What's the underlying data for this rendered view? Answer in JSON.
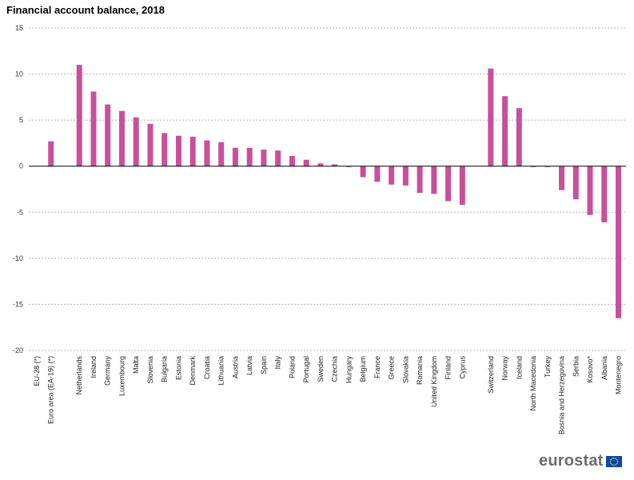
{
  "chart_data": {
    "type": "bar",
    "title": "Financial account balance, 2018",
    "xlabel": "",
    "ylabel": "",
    "ylim": [
      -20,
      15
    ],
    "yticks": [
      15,
      10,
      5,
      0,
      -5,
      -10,
      -15,
      -20
    ],
    "grid": true,
    "legend": "none",
    "bar_color": "#c8509b",
    "categories": [
      "EU-28 (*)",
      "Euro area (EA-19) (*)",
      "",
      "Netherlands",
      "Ireland",
      "Germany",
      "Luxembourg",
      "Malta",
      "Slovenia",
      "Bulgaria",
      "Estonia",
      "Denmark",
      "Croatia",
      "Lithuania",
      "Austria",
      "Latvia",
      "Spain",
      "Italy",
      "Poland",
      "Portugal",
      "Sweden",
      "Czechia",
      "Hungary",
      "Belgium",
      "France",
      "Greece",
      "Slovakia",
      "Romania",
      "United Kingdom",
      "Finland",
      "Cyprus",
      "",
      "Switzerland",
      "Norway",
      "Iceland",
      "North Macedonia",
      "Turkey",
      "Bosnia and Herzegovina",
      "Serbia",
      "Kosovo*",
      "Albania",
      "Montenegro"
    ],
    "values": [
      null,
      2.7,
      null,
      11.0,
      8.1,
      6.7,
      6.0,
      5.3,
      4.6,
      3.6,
      3.3,
      3.2,
      2.8,
      2.6,
      2.0,
      2.0,
      1.8,
      1.7,
      1.1,
      0.7,
      0.3,
      0.2,
      -0.1,
      -1.2,
      -1.7,
      -2.0,
      -2.1,
      -2.9,
      -3.0,
      -3.8,
      -4.2,
      null,
      10.6,
      7.6,
      6.3,
      -0.1,
      -0.1,
      -2.6,
      -3.6,
      -5.3,
      -6.1,
      -16.5
    ]
  },
  "brand": {
    "logo_text": "eurostat",
    "flag_color": "#0e47a8",
    "star_color": "#ffdd00"
  }
}
